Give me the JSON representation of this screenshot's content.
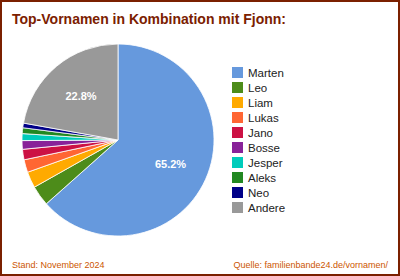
{
  "chart_data": {
    "type": "pie",
    "title": "Top-Vornamen in Kombination mit Fjonn:",
    "categories": [
      "Marten",
      "Leo",
      "Liam",
      "Lukas",
      "Jano",
      "Bosse",
      "Jesper",
      "Aleks",
      "Neo",
      "Andere"
    ],
    "values": [
      65.2,
      3.5,
      2.8,
      2.2,
      1.8,
      1.5,
      1.2,
      1.0,
      0.8,
      22.8
    ],
    "value_labels": [
      "65.2%",
      null,
      null,
      null,
      null,
      null,
      null,
      null,
      null,
      "22.8%"
    ],
    "colors": [
      "#6699DD",
      "#4d8c1a",
      "#FFAA00",
      "#FF6633",
      "#CC1144",
      "#882299",
      "#00CCBB",
      "#228822",
      "#000088",
      "#999999"
    ],
    "legend": "right",
    "annotations": [
      "Stand: November 2024",
      "Quelle: familienbande24.de/vornamen/"
    ]
  }
}
